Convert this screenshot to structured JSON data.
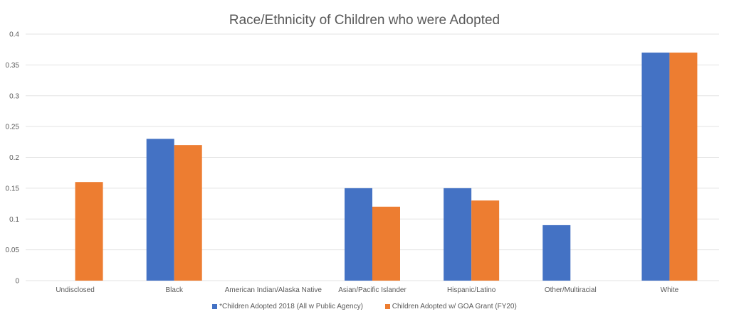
{
  "chart_data": {
    "type": "bar",
    "title": "Race/Ethnicity of Children who were Adopted",
    "xlabel": "",
    "ylabel": "",
    "ylim": [
      0,
      0.4
    ],
    "yticks": [
      "0",
      "0.05",
      "0.1",
      "0.15",
      "0.2",
      "0.25",
      "0.3",
      "0.35",
      "0.4"
    ],
    "grid": true,
    "legend_position": "bottom",
    "categories": [
      "Undisclosed",
      "Black",
      "American Indian/Alaska Native",
      "Asian/Pacific Islander",
      "Hispanic/Latino",
      "Other/Multiracial",
      "White"
    ],
    "series": [
      {
        "name": "*Children Adopted 2018 (All w Public Agency)",
        "color": "#4472C4",
        "values": [
          0,
          0.23,
          0,
          0.15,
          0.15,
          0.09,
          0.37
        ]
      },
      {
        "name": "Children Adopted w/ GOA Grant (FY20)",
        "color": "#ED7D31",
        "values": [
          0.16,
          0.22,
          0,
          0.12,
          0.13,
          0,
          0.37
        ]
      }
    ]
  }
}
